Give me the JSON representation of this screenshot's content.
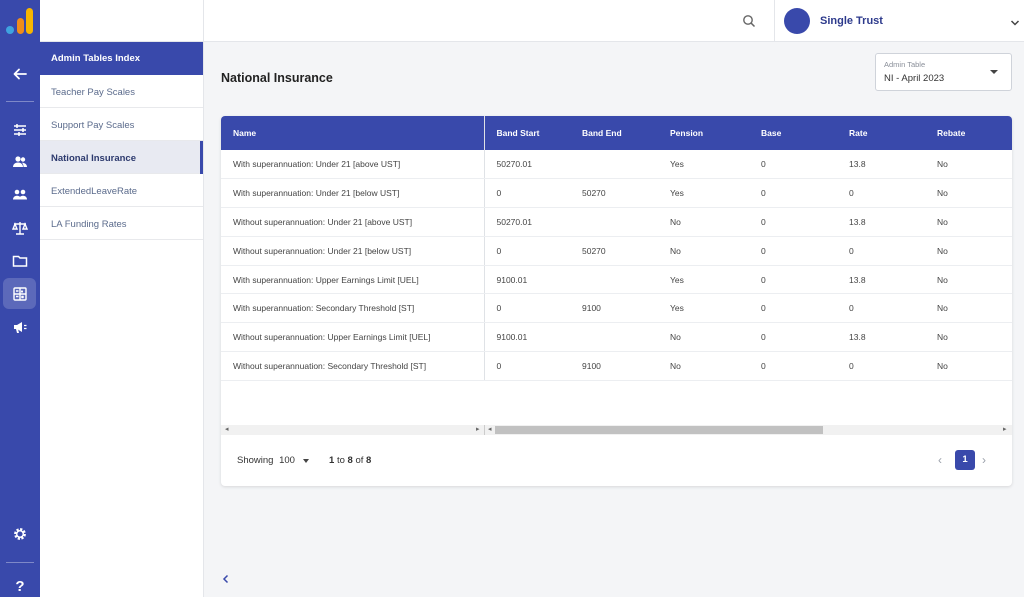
{
  "brand": {
    "logo_colors": [
      "#f7b500",
      "#f08c1a",
      "#3fa3e0"
    ]
  },
  "rail": {
    "icons": [
      "back-arrow-icon",
      "sliders-icon",
      "users-icon",
      "group-icon",
      "scales-icon",
      "folder-icon",
      "calculator-icon",
      "megaphone-icon",
      "gear-icon",
      "help-icon"
    ]
  },
  "sidebar": {
    "header": "Admin Tables Index",
    "items": [
      {
        "label": "Teacher Pay Scales"
      },
      {
        "label": "Support Pay Scales"
      },
      {
        "label": "National Insurance"
      },
      {
        "label": "ExtendedLeaveRate"
      },
      {
        "label": "LA Funding Rates"
      }
    ],
    "active_index": 2
  },
  "topbar": {
    "trust_name": "Single Trust"
  },
  "main": {
    "title": "National Insurance",
    "admin_table": {
      "label": "Admin Table",
      "value": "NI - April 2023"
    }
  },
  "table": {
    "columns": [
      "Name",
      "Band Start",
      "Band End",
      "Pension",
      "Base",
      "Rate",
      "Rebate"
    ],
    "rows": [
      [
        "With superannuation: Under 21 [above UST]",
        "50270.01",
        "",
        "Yes",
        "0",
        "13.8",
        "No"
      ],
      [
        "With superannuation: Under 21 [below UST]",
        "0",
        "50270",
        "Yes",
        "0",
        "0",
        "No"
      ],
      [
        "Without superannuation: Under 21 [above UST]",
        "50270.01",
        "",
        "No",
        "0",
        "13.8",
        "No"
      ],
      [
        "Without superannuation: Under 21 [below UST]",
        "0",
        "50270",
        "No",
        "0",
        "0",
        "No"
      ],
      [
        "With superannuation: Upper Earnings Limit [UEL]",
        "9100.01",
        "",
        "Yes",
        "0",
        "13.8",
        "No"
      ],
      [
        "With superannuation: Secondary Threshold [ST]",
        "0",
        "9100",
        "Yes",
        "0",
        "0",
        "No"
      ],
      [
        "Without superannuation: Upper Earnings Limit [UEL]",
        "9100.01",
        "",
        "No",
        "0",
        "13.8",
        "No"
      ],
      [
        "Without superannuation: Secondary Threshold [ST]",
        "0",
        "9100",
        "No",
        "0",
        "0",
        "No"
      ]
    ]
  },
  "pagination": {
    "showing_label": "Showing",
    "page_size": "100",
    "range_from": "1",
    "range_to_word": "to",
    "range_to": "8",
    "of_word": "of",
    "total": "8",
    "current_page": "1"
  }
}
